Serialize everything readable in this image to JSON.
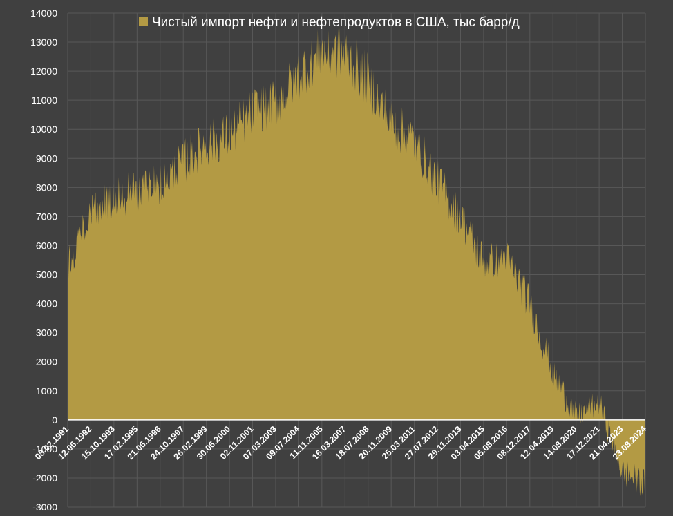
{
  "chart_data": {
    "type": "area",
    "title": "",
    "xlabel": "",
    "ylabel": "",
    "ylim": [
      -3000,
      14000
    ],
    "y_ticks": [
      -3000,
      -2000,
      -1000,
      0,
      1000,
      2000,
      3000,
      4000,
      5000,
      6000,
      7000,
      8000,
      9000,
      10000,
      11000,
      12000,
      13000,
      14000
    ],
    "x_tick_labels": [
      "08.02.1991",
      "12.06.1992",
      "15.10.1993",
      "17.02.1995",
      "21.06.1996",
      "24.10.1997",
      "26.02.1999",
      "30.06.2000",
      "02.11.2001",
      "07.03.2003",
      "09.07.2004",
      "11.11.2005",
      "16.03.2007",
      "18.07.2008",
      "20.11.2009",
      "25.03.2011",
      "27.07.2012",
      "29.11.2013",
      "03.04.2015",
      "05.08.2016",
      "08.12.2017",
      "12.04.2019",
      "14.08.2020",
      "17.12.2021",
      "21.04.2023",
      "23.08.2024"
    ],
    "grid": true,
    "legend_position": "top",
    "colors": {
      "background": "#404040",
      "area": "#b39a44",
      "grid": "#585858",
      "text": "#ffffff"
    },
    "series": [
      {
        "name": "Чистый импорт нефти и нефтепродуктов в США, тыс барр/д",
        "x": [
          "08.02.1991",
          "12.06.1992",
          "15.10.1993",
          "17.02.1995",
          "21.06.1996",
          "24.10.1997",
          "26.02.1999",
          "30.06.2000",
          "02.11.2001",
          "07.03.2003",
          "09.07.2004",
          "11.11.2005",
          "16.03.2007",
          "18.07.2008",
          "20.11.2009",
          "25.03.2011",
          "27.07.2012",
          "29.11.2013",
          "03.04.2015",
          "05.08.2016",
          "08.12.2017",
          "12.04.2019",
          "14.08.2020",
          "17.12.2021",
          "21.04.2023",
          "23.08.2024"
        ],
        "values": [
          5300,
          7100,
          7600,
          7900,
          8100,
          8900,
          9500,
          9800,
          10600,
          10900,
          11900,
          12700,
          12600,
          11700,
          10200,
          9600,
          8200,
          7000,
          5400,
          5600,
          4000,
          1600,
          100,
          600,
          -1800,
          -2200
        ]
      }
    ]
  }
}
